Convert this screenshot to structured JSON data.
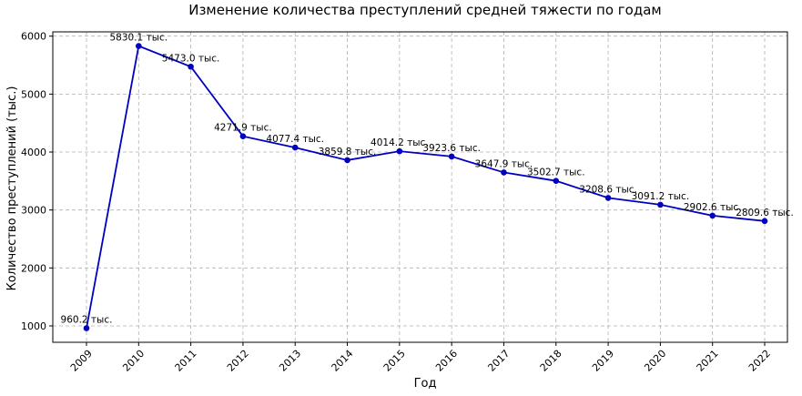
{
  "chart_data": {
    "type": "line",
    "title": "Изменение количества преступлений средней тяжести по годам",
    "xlabel": "Год",
    "ylabel": "Количество преступлений (тыс.)",
    "x": [
      "2009",
      "2010",
      "2011",
      "2012",
      "2013",
      "2014",
      "2015",
      "2016",
      "2017",
      "2018",
      "2019",
      "2020",
      "2021",
      "2022"
    ],
    "series": [
      {
        "values": [
          960.2,
          5830.1,
          5473.0,
          4271.9,
          4077.4,
          3859.8,
          4014.2,
          3923.6,
          3647.9,
          3502.7,
          3208.6,
          3091.2,
          2902.6,
          2809.6
        ],
        "labels": [
          "960.2 тыс.",
          "5830.1 тыс.",
          "5473.0 тыс.",
          "4271.9 тыс.",
          "4077.4 тыс.",
          "3859.8 тыс.",
          "4014.2 тыс.",
          "3923.6 тыс.",
          "3647.9 тыс.",
          "3502.7 тыс.",
          "3208.6 тыс.",
          "3091.2 тыс.",
          "2902.6 тыс.",
          "2809.6 тыс."
        ],
        "color": "#0000c0"
      }
    ],
    "yticks": [
      1000,
      2000,
      3000,
      4000,
      5000,
      6000
    ],
    "ylim": [
      717,
      6074
    ],
    "grid": true,
    "line_color": "#0000c0"
  }
}
